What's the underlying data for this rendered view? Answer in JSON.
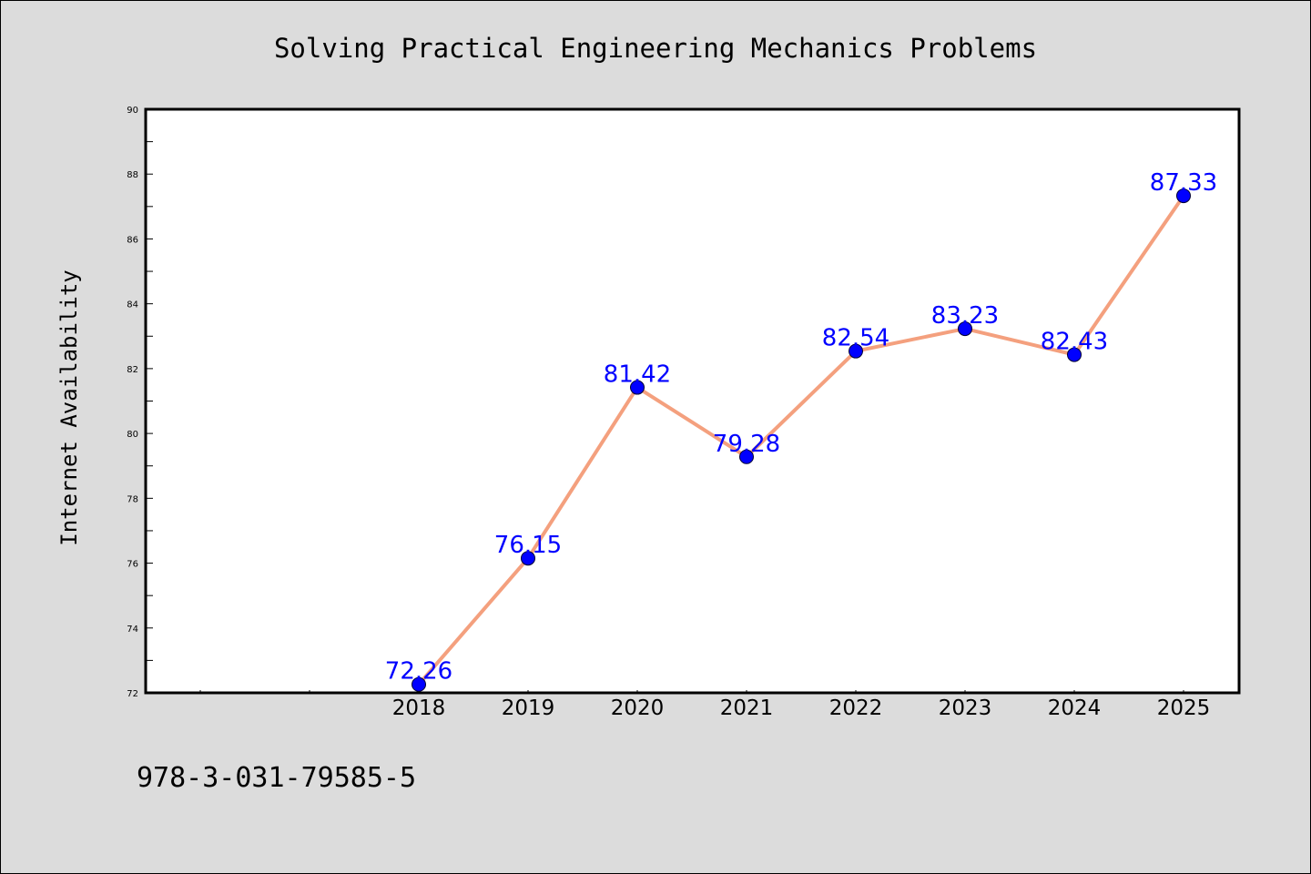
{
  "chart_data": {
    "type": "line",
    "title": "Solving Practical Engineering Mechanics Problems",
    "xlabel": "",
    "ylabel": "Internet Availability",
    "categories": [
      "2018",
      "2019",
      "2020",
      "2021",
      "2022",
      "2023",
      "2024",
      "2025"
    ],
    "x_extra_ticks_before": 2,
    "series": [
      {
        "values": [
          72.26,
          76.15,
          81.42,
          79.28,
          82.54,
          83.23,
          82.43,
          87.33
        ],
        "labels": [
          "72.26",
          "76.15",
          "81.42",
          "79.28",
          "82.54",
          "83.23",
          "82.43",
          "87.33"
        ]
      }
    ],
    "ylim": [
      72,
      90
    ],
    "yticks": [
      "72",
      "74",
      "76",
      "78",
      "80",
      "82",
      "84",
      "86",
      "88",
      "90"
    ],
    "grid": false,
    "line_color": "#f4a07e",
    "marker_color": "#0000ff",
    "label_color": "#0000ff",
    "plot_background": "#ffffff",
    "page_background": "#dcdcdc"
  },
  "footer": {
    "isbn": "978-3-031-79585-5"
  }
}
